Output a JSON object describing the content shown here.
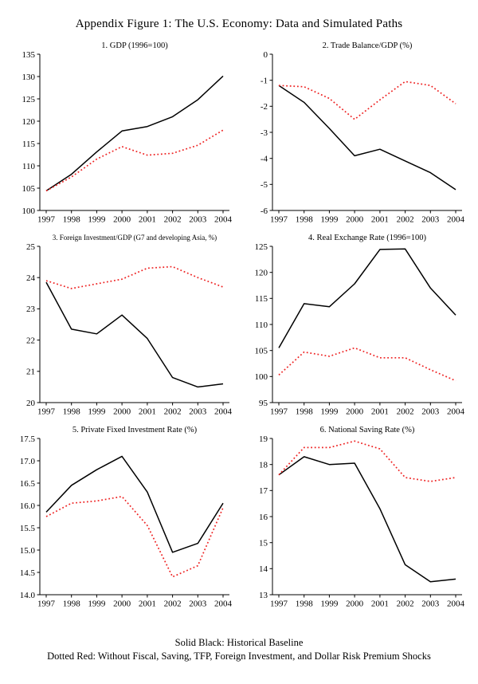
{
  "title": "Appendix Figure 1: The U.S. Economy: Data and Simulated Paths",
  "footer": {
    "line1": "Solid Black: Historical Baseline",
    "line2": "Dotted Red: Without Fiscal, Saving, TFP, Foreign Investment, and Dollar Risk Premium Shocks"
  },
  "colors": {
    "baseline": "#000000",
    "counterfactual": "#ee2222"
  },
  "legend": [
    {
      "name": "Historical Baseline",
      "style": "solid-black"
    },
    {
      "name": "Without Fiscal, Saving, TFP, Foreign Investment, and Dollar Risk Premium Shocks",
      "style": "dotted-red"
    }
  ],
  "chart_data": [
    {
      "type": "line",
      "title": "1. GDP (1996=100)",
      "x": [
        1997,
        1998,
        1999,
        2000,
        2001,
        2002,
        2003,
        2004
      ],
      "ylim": [
        100,
        135
      ],
      "yticks": [
        100,
        105,
        110,
        115,
        120,
        125,
        130,
        135
      ],
      "ytick_labels": [
        "100",
        "105",
        "110",
        "115",
        "120",
        "125",
        "130",
        "135"
      ],
      "series": [
        {
          "name": "Historical Baseline",
          "style": "solid-black",
          "values": [
            104.4,
            108.1,
            113.1,
            117.8,
            118.8,
            121.0,
            124.8,
            130.1
          ]
        },
        {
          "name": "Without Shocks",
          "style": "dotted-red",
          "values": [
            104.4,
            107.5,
            111.5,
            114.3,
            112.4,
            112.8,
            114.6,
            118.0
          ]
        }
      ]
    },
    {
      "type": "line",
      "title": "2. Trade Balance/GDP (%)",
      "x": [
        1997,
        1998,
        1999,
        2000,
        2001,
        2002,
        2003,
        2004
      ],
      "ylim": [
        -6,
        0
      ],
      "yticks": [
        -6,
        -5,
        -4,
        -3,
        -2,
        -1,
        0
      ],
      "ytick_labels": [
        "-6",
        "-5",
        "-4",
        "-3",
        "-2",
        "-1",
        "0"
      ],
      "series": [
        {
          "name": "Historical Baseline",
          "style": "solid-black",
          "values": [
            -1.2,
            -1.85,
            -2.85,
            -3.9,
            -3.65,
            -4.1,
            -4.55,
            -5.2
          ]
        },
        {
          "name": "Without Shocks",
          "style": "dotted-red",
          "values": [
            -1.2,
            -1.25,
            -1.7,
            -2.5,
            -1.75,
            -1.05,
            -1.2,
            -1.9
          ]
        }
      ]
    },
    {
      "type": "line",
      "title": "3. Foreign Investment/GDP (G7 and developing Asia, %)",
      "x": [
        1997,
        1998,
        1999,
        2000,
        2001,
        2002,
        2003,
        2004
      ],
      "ylim": [
        20,
        25
      ],
      "yticks": [
        20,
        21,
        22,
        23,
        24,
        25
      ],
      "ytick_labels": [
        "20",
        "21",
        "22",
        "23",
        "24",
        "25"
      ],
      "series": [
        {
          "name": "Historical Baseline",
          "style": "solid-black",
          "values": [
            23.85,
            22.35,
            22.2,
            22.8,
            22.05,
            20.8,
            20.5,
            20.6
          ]
        },
        {
          "name": "Without Shocks",
          "style": "dotted-red",
          "values": [
            23.9,
            23.65,
            23.8,
            23.95,
            24.3,
            24.35,
            24.0,
            23.7
          ]
        }
      ]
    },
    {
      "type": "line",
      "title": "4. Real Exchange Rate (1996=100)",
      "x": [
        1997,
        1998,
        1999,
        2000,
        2001,
        2002,
        2003,
        2004
      ],
      "ylim": [
        95,
        125
      ],
      "yticks": [
        95,
        100,
        105,
        110,
        115,
        120,
        125
      ],
      "ytick_labels": [
        "95",
        "100",
        "105",
        "110",
        "115",
        "120",
        "125"
      ],
      "series": [
        {
          "name": "Historical Baseline",
          "style": "solid-black",
          "values": [
            105.5,
            114.0,
            113.4,
            117.8,
            124.4,
            124.5,
            117.0,
            111.8
          ]
        },
        {
          "name": "Without Shocks",
          "style": "dotted-red",
          "values": [
            100.3,
            104.7,
            103.9,
            105.5,
            103.6,
            103.6,
            101.3,
            99.2
          ]
        }
      ]
    },
    {
      "type": "line",
      "title": "5. Private Fixed Investment Rate (%)",
      "x": [
        1997,
        1998,
        1999,
        2000,
        2001,
        2002,
        2003,
        2004
      ],
      "ylim": [
        14.0,
        17.5
      ],
      "yticks": [
        14.0,
        14.5,
        15.0,
        15.5,
        16.0,
        16.5,
        17.0,
        17.5
      ],
      "ytick_labels": [
        "14.0",
        "14.5",
        "15.0",
        "15.5",
        "16.0",
        "16.5",
        "17.0",
        "17.5"
      ],
      "series": [
        {
          "name": "Historical Baseline",
          "style": "solid-black",
          "values": [
            15.85,
            16.45,
            16.8,
            17.1,
            16.3,
            14.95,
            15.15,
            16.05
          ]
        },
        {
          "name": "Without Shocks",
          "style": "dotted-red",
          "values": [
            15.75,
            16.05,
            16.1,
            16.2,
            15.55,
            14.4,
            14.65,
            15.95
          ]
        }
      ]
    },
    {
      "type": "line",
      "title": "6. National Saving Rate (%)",
      "x": [
        1997,
        1998,
        1999,
        2000,
        2001,
        2002,
        2003,
        2004
      ],
      "ylim": [
        13,
        19
      ],
      "yticks": [
        13,
        14,
        15,
        16,
        17,
        18,
        19
      ],
      "ytick_labels": [
        "13",
        "14",
        "15",
        "16",
        "17",
        "18",
        "19"
      ],
      "series": [
        {
          "name": "Historical Baseline",
          "style": "solid-black",
          "values": [
            17.6,
            18.3,
            18.0,
            18.05,
            16.3,
            14.15,
            13.5,
            13.6
          ]
        },
        {
          "name": "Without Shocks",
          "style": "dotted-red",
          "values": [
            17.6,
            18.65,
            18.65,
            18.9,
            18.6,
            17.5,
            17.35,
            17.5
          ]
        }
      ]
    }
  ]
}
